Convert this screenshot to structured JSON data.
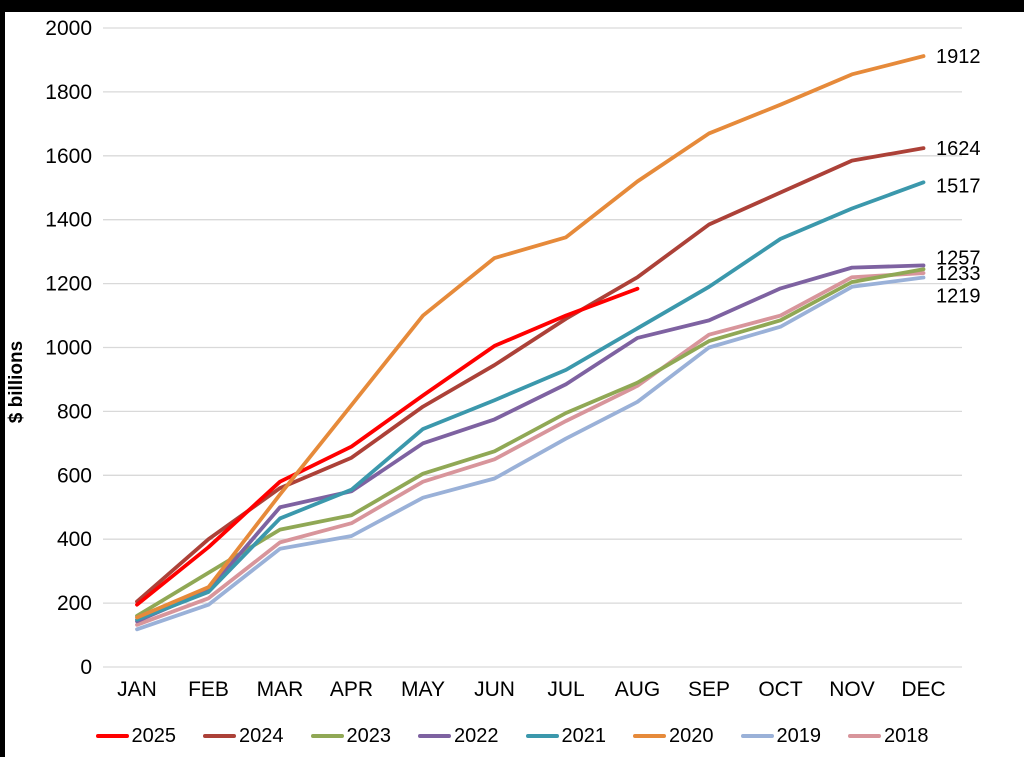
{
  "chart_data": {
    "type": "line",
    "title": "",
    "xlabel": "",
    "ylabel": "$ billions",
    "categories": [
      "JAN",
      "FEB",
      "MAR",
      "APR",
      "MAY",
      "JUN",
      "JUL",
      "AUG",
      "SEP",
      "OCT",
      "NOV",
      "DEC"
    ],
    "y_axis": {
      "min": 0,
      "max": 2000,
      "step": 200
    },
    "grid": "horizontal",
    "legend_position": "bottom",
    "series": [
      {
        "name": "2025",
        "color": "#ff0000",
        "values": [
          195,
          375,
          580,
          690,
          850,
          1005,
          1100,
          1184
        ]
      },
      {
        "name": "2024",
        "color": "#ac4138",
        "values": [
          205,
          400,
          560,
          655,
          815,
          945,
          1090,
          1220,
          1385,
          1485,
          1585,
          1624
        ]
      },
      {
        "name": "2023",
        "color": "#90a855",
        "values": [
          160,
          295,
          430,
          475,
          605,
          675,
          795,
          890,
          1020,
          1085,
          1205,
          1245
        ]
      },
      {
        "name": "2022",
        "color": "#7e62a1",
        "values": [
          143,
          240,
          500,
          550,
          700,
          775,
          885,
          1030,
          1085,
          1185,
          1250,
          1257
        ]
      },
      {
        "name": "2021",
        "color": "#3b98ac",
        "values": [
          148,
          235,
          465,
          555,
          745,
          835,
          930,
          1060,
          1190,
          1340,
          1435,
          1517
        ]
      },
      {
        "name": "2020",
        "color": "#e68a3a",
        "values": [
          155,
          250,
          540,
          820,
          1100,
          1280,
          1345,
          1520,
          1670,
          1760,
          1855,
          1912
        ]
      },
      {
        "name": "2019",
        "color": "#9ab1d8",
        "values": [
          118,
          195,
          370,
          410,
          530,
          590,
          715,
          830,
          1000,
          1065,
          1190,
          1219
        ]
      },
      {
        "name": "2018",
        "color": "#d8959b",
        "values": [
          132,
          215,
          390,
          450,
          580,
          650,
          770,
          880,
          1040,
          1100,
          1220,
          1233
        ]
      }
    ],
    "end_labels": [
      {
        "text": "1912",
        "value": 1912,
        "dy": 0
      },
      {
        "text": "1624",
        "value": 1624,
        "dy": 0
      },
      {
        "text": "1517",
        "value": 1517,
        "dy": 3
      },
      {
        "text": "1257",
        "value": 1257,
        "dy": -8
      },
      {
        "text": "1233",
        "value": 1233,
        "dy": 0
      },
      {
        "text": "1219",
        "value": 1219,
        "dy": 18
      }
    ]
  }
}
